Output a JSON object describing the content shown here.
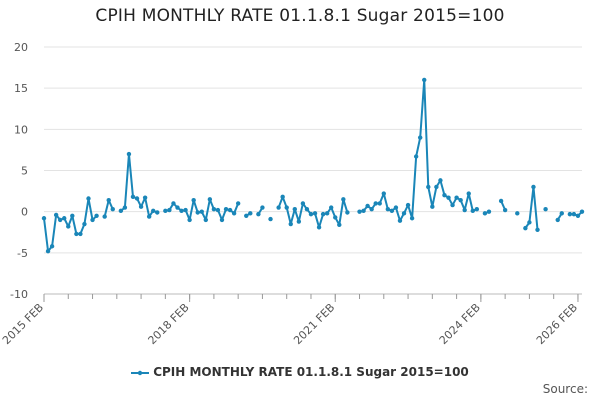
{
  "chart_data": {
    "type": "line",
    "title": "CPIH MONTHLY RATE 01.1.8.1 Sugar 2015=100",
    "ylim": [
      -10,
      20
    ],
    "yticks": [
      20,
      15,
      10,
      5,
      0,
      -5,
      -10
    ],
    "grid": true,
    "legend": "bottom",
    "x_start": "2015 FEB",
    "x_ticks": [
      "2015 FEB",
      "2018 FEB",
      "2021 FEB",
      "2024 FEB",
      "2026 FEB"
    ],
    "series": [
      {
        "name": "CPIH MONTHLY RATE 01.1.8.1 Sugar 2015=100",
        "color": "#1a86b8",
        "values": [
          -0.8,
          -4.8,
          -4.2,
          -0.4,
          -1.0,
          -0.8,
          -1.8,
          -0.5,
          -2.7,
          -2.7,
          -1.5,
          1.6,
          -1.0,
          -0.5,
          null,
          -0.6,
          1.4,
          0.3,
          null,
          0.1,
          0.5,
          7.0,
          1.8,
          1.6,
          0.6,
          1.7,
          -0.6,
          0.1,
          -0.1,
          null,
          0.1,
          0.2,
          1.0,
          0.5,
          0.1,
          0.2,
          -1.0,
          1.4,
          -0.1,
          0.0,
          -1.0,
          1.5,
          0.3,
          0.2,
          -1.0,
          0.3,
          0.2,
          -0.2,
          1.0,
          null,
          -0.5,
          -0.2,
          null,
          -0.3,
          0.5,
          null,
          -0.9,
          null,
          0.5,
          1.8,
          0.5,
          -1.5,
          0.3,
          -1.2,
          1.0,
          0.3,
          -0.3,
          -0.2,
          -1.9,
          -0.3,
          -0.2,
          0.5,
          -0.7,
          -1.6,
          1.5,
          -0.1,
          null,
          null,
          0.0,
          0.1,
          0.7,
          0.3,
          1.0,
          1.0,
          2.2,
          0.3,
          0.1,
          0.5,
          -1.1,
          -0.2,
          0.8,
          -0.8,
          6.7,
          9.0,
          16.0,
          3.0,
          0.6,
          3.0,
          3.8,
          2.0,
          1.7,
          0.8,
          1.7,
          1.4,
          0.2,
          2.2,
          0.1,
          0.3,
          null,
          -0.2,
          0.0,
          null,
          null,
          1.3,
          0.2,
          null,
          null,
          -0.2,
          null,
          -2.0,
          -1.3,
          3.0,
          -2.2,
          null,
          0.3,
          null,
          null,
          -1.0,
          -0.2,
          null,
          -0.3,
          -0.3,
          -0.5,
          0.0
        ]
      }
    ]
  },
  "footer": {
    "source_label": "Source:"
  }
}
